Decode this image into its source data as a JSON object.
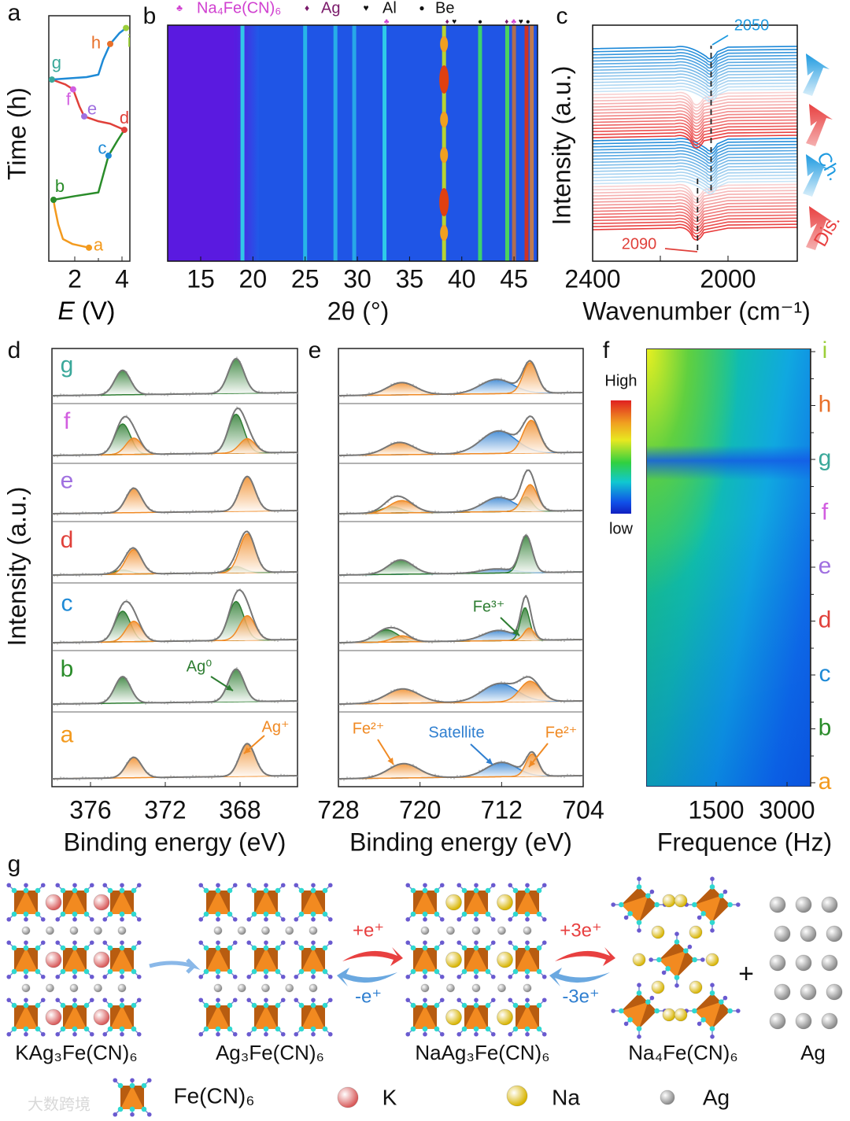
{
  "panel_labels": {
    "a": "a",
    "b": "b",
    "c": "c",
    "d": "d",
    "e": "e",
    "f": "f",
    "g": "g"
  },
  "watermark": "大数跨境",
  "colors": {
    "a": "#f39a1e",
    "b": "#2a8c2a",
    "c": "#1e8ad6",
    "d": "#e0403a",
    "e": "#a070e0",
    "f": "#d25ee0",
    "g": "#3aa89a",
    "h": "#e8702a",
    "i": "#9ccf3a",
    "green_peak": "#2e7d32",
    "orange_peak": "#f08a24",
    "blue_peak": "#2f7fd0"
  },
  "chart_data": [
    {
      "id": "a",
      "type": "line",
      "xlabel_var": "E",
      "xlabel_unit": " (V)",
      "ylabel": "Time (h)",
      "xlim": [
        0.9,
        4.45
      ],
      "xticks": [
        "2",
        "4"
      ],
      "xtick_values": [
        2,
        4
      ],
      "points": [
        {
          "label": "a",
          "E": 2.6,
          "t": 0.055
        },
        {
          "label": "b",
          "E": 1.1,
          "t": 0.25
        },
        {
          "label": "c",
          "E": 3.43,
          "t": 0.43
        },
        {
          "label": "d",
          "E": 4.1,
          "t": 0.535
        },
        {
          "label": "e",
          "E": 2.4,
          "t": 0.59
        },
        {
          "label": "f",
          "E": 1.93,
          "t": 0.7
        },
        {
          "label": "g",
          "E": 1.03,
          "t": 0.74
        },
        {
          "label": "h",
          "E": 3.5,
          "t": 0.885
        },
        {
          "label": "i",
          "E": 4.17,
          "t": 0.95
        }
      ],
      "segments": [
        {
          "color": "#f39a1e",
          "pts": [
            [
              2.6,
              0.055
            ],
            [
              1.9,
              0.07
            ],
            [
              1.5,
              0.09
            ],
            [
              1.3,
              0.15
            ],
            [
              1.15,
              0.22
            ],
            [
              1.1,
              0.25
            ]
          ]
        },
        {
          "color": "#2a8c2a",
          "pts": [
            [
              1.1,
              0.25
            ],
            [
              2.0,
              0.265
            ],
            [
              3.0,
              0.28
            ],
            [
              3.2,
              0.35
            ],
            [
              3.43,
              0.43
            ],
            [
              3.8,
              0.49
            ],
            [
              4.1,
              0.535
            ]
          ]
        },
        {
          "color": "#e0403a",
          "pts": [
            [
              4.1,
              0.535
            ],
            [
              3.5,
              0.56
            ],
            [
              3.0,
              0.57
            ],
            [
              2.4,
              0.59
            ],
            [
              2.2,
              0.63
            ],
            [
              1.93,
              0.7
            ],
            [
              1.6,
              0.72
            ],
            [
              1.03,
              0.74
            ]
          ]
        },
        {
          "color": "#1e8ad6",
          "pts": [
            [
              1.03,
              0.74
            ],
            [
              2.5,
              0.75
            ],
            [
              3.0,
              0.76
            ],
            [
              3.2,
              0.82
            ],
            [
              3.5,
              0.885
            ],
            [
              3.9,
              0.93
            ],
            [
              4.17,
              0.95
            ]
          ]
        }
      ]
    },
    {
      "id": "b",
      "type": "heatmap",
      "xlabel": "2θ (°)",
      "xlim": [
        11.8,
        47.2
      ],
      "xticks": [
        "15",
        "20",
        "25",
        "30",
        "35",
        "40",
        "45"
      ],
      "xtick_values": [
        15,
        20,
        25,
        30,
        35,
        40,
        45
      ],
      "legend": [
        {
          "symbol": "♣",
          "label": "Na₄Fe(CN)₆",
          "color": "#d040d0"
        },
        {
          "symbol": "♦",
          "label": "Ag",
          "color": "#7a1a6a"
        },
        {
          "symbol": "♥",
          "label": "Al",
          "color": "#111111"
        },
        {
          "symbol": "●",
          "label": "Be",
          "color": "#111111"
        }
      ],
      "markers": [
        {
          "symbol": "♣",
          "pos": 32.8,
          "color": "#d040d0"
        },
        {
          "symbol": "♦",
          "pos": 38.6,
          "color": "#7a1a6a"
        },
        {
          "symbol": "♥",
          "pos": 38.95,
          "color": "#111111"
        },
        {
          "symbol": "●",
          "pos": 41.75,
          "color": "#111111"
        },
        {
          "symbol": "♦",
          "pos": 44.3,
          "color": "#7a1a6a"
        },
        {
          "symbol": "♣",
          "pos": 44.6,
          "color": "#d040d0"
        },
        {
          "symbol": "♥",
          "pos": 45.05,
          "color": "#111111"
        },
        {
          "symbol": "●",
          "pos": 46.3,
          "color": "#111111"
        }
      ],
      "peaks": [
        {
          "pos": 19.0,
          "color": "#30d8e8"
        },
        {
          "pos": 25.0,
          "color": "#28c0e8"
        },
        {
          "pos": 27.9,
          "color": "#28b8e8"
        },
        {
          "pos": 29.7,
          "color": "#28b0e8"
        },
        {
          "pos": 32.6,
          "color": "#30d8e8"
        },
        {
          "pos": 38.3,
          "color": "#c8e020"
        },
        {
          "pos": 41.75,
          "color": "#40e060"
        },
        {
          "pos": 44.35,
          "color": "#50e050"
        },
        {
          "pos": 45.0,
          "color": "#c07040"
        },
        {
          "pos": 46.2,
          "color": "#e03010"
        },
        {
          "pos": 46.7,
          "color": "#d08040"
        }
      ]
    },
    {
      "id": "c",
      "type": "line",
      "xlabel": "Wavenumber (cm⁻¹)",
      "ylabel": "Intensity (a.u.)",
      "xlim": [
        2400,
        1795
      ],
      "xticks": [
        "2400",
        "2000"
      ],
      "xtick_values": [
        2400,
        2200,
        2000
      ],
      "annotations": {
        "peak_low": "2090",
        "peak_high": "2050",
        "charge": "Ch.",
        "discharge": "Dis."
      },
      "peak_positions": [
        2090,
        2050
      ],
      "blocks": [
        "discharge",
        "charge",
        "discharge",
        "charge"
      ],
      "spectra_per_block": 15
    },
    {
      "id": "d",
      "type": "line",
      "xlabel": "Binding energy (eV)",
      "ylabel": "Intensity (a.u.)",
      "xlim": [
        378.1,
        364.9
      ],
      "xticks": [
        "376",
        "372",
        "368"
      ],
      "xtick_values": [
        376,
        372,
        368
      ],
      "annotations": {
        "ag0": "Ag⁰",
        "agplus": "Ag⁺"
      },
      "spectra": [
        {
          "label": "g",
          "peaks": [
            {
              "c": 374.3,
              "a": 0.6,
              "k": "g"
            },
            {
              "c": 368.2,
              "a": 0.85,
              "k": "g"
            }
          ]
        },
        {
          "label": "f",
          "peaks": [
            {
              "c": 374.3,
              "a": 0.75,
              "k": "g"
            },
            {
              "c": 373.7,
              "a": 0.4,
              "k": "o"
            },
            {
              "c": 368.2,
              "a": 0.95,
              "k": "g"
            },
            {
              "c": 367.6,
              "a": 0.35,
              "k": "o"
            }
          ]
        },
        {
          "label": "e",
          "peaks": [
            {
              "c": 373.7,
              "a": 0.6,
              "k": "o"
            },
            {
              "c": 367.6,
              "a": 0.85,
              "k": "o"
            }
          ]
        },
        {
          "label": "d",
          "peaks": [
            {
              "c": 374.3,
              "a": 0.1,
              "k": "g"
            },
            {
              "c": 373.7,
              "a": 0.6,
              "k": "o"
            },
            {
              "c": 368.2,
              "a": 0.15,
              "k": "g"
            },
            {
              "c": 367.6,
              "a": 0.95,
              "k": "o"
            }
          ]
        },
        {
          "label": "c",
          "peaks": [
            {
              "c": 374.3,
              "a": 0.75,
              "k": "g"
            },
            {
              "c": 373.7,
              "a": 0.5,
              "k": "o"
            },
            {
              "c": 368.2,
              "a": 0.95,
              "k": "g"
            },
            {
              "c": 367.6,
              "a": 0.6,
              "k": "o"
            }
          ]
        },
        {
          "label": "b",
          "peaks": [
            {
              "c": 374.3,
              "a": 0.65,
              "k": "g"
            },
            {
              "c": 368.2,
              "a": 0.8,
              "k": "g"
            }
          ]
        },
        {
          "label": "a",
          "peaks": [
            {
              "c": 373.7,
              "a": 0.5,
              "k": "o"
            },
            {
              "c": 367.6,
              "a": 0.8,
              "k": "o"
            }
          ]
        }
      ]
    },
    {
      "id": "e",
      "type": "line",
      "xlabel": "Binding energy (eV)",
      "xlim": [
        728,
        704
      ],
      "xticks": [
        "728",
        "720",
        "712",
        "704"
      ],
      "xtick_values": [
        728,
        720,
        712,
        704
      ],
      "annotations": {
        "fe3": "Fe³⁺",
        "fe2_left": "Fe²⁺",
        "satellite": "Satellite",
        "fe2_right": "Fe²⁺"
      },
      "spectra": [
        {
          "label": "g",
          "peaks": [
            {
              "c": 721.8,
              "a": 0.3,
              "k": "o",
              "w": 1.4
            },
            {
              "c": 712.5,
              "a": 0.35,
              "k": "b",
              "w": 1.6
            },
            {
              "c": 709.2,
              "a": 0.75,
              "k": "o",
              "w": 0.7
            }
          ]
        },
        {
          "label": "f",
          "peaks": [
            {
              "c": 722.0,
              "a": 0.3,
              "k": "o",
              "w": 1.4
            },
            {
              "c": 712.3,
              "a": 0.55,
              "k": "b",
              "w": 1.7
            },
            {
              "c": 709.1,
              "a": 0.8,
              "k": "o",
              "w": 0.8
            }
          ]
        },
        {
          "label": "e",
          "peaks": [
            {
              "c": 722.8,
              "a": 0.15,
              "k": "g",
              "w": 1.0
            },
            {
              "c": 721.8,
              "a": 0.3,
              "k": "o",
              "w": 1.2
            },
            {
              "c": 712.3,
              "a": 0.35,
              "k": "b",
              "w": 1.5
            },
            {
              "c": 709.6,
              "a": 0.35,
              "k": "g",
              "w": 0.6
            },
            {
              "c": 709.2,
              "a": 0.65,
              "k": "o",
              "w": 0.7
            }
          ]
        },
        {
          "label": "d",
          "peaks": [
            {
              "c": 721.9,
              "a": 0.35,
              "k": "g",
              "w": 1.2
            },
            {
              "c": 712.5,
              "a": 0.1,
              "k": "b",
              "w": 1.5
            },
            {
              "c": 709.6,
              "a": 0.9,
              "k": "g",
              "w": 0.6
            }
          ]
        },
        {
          "label": "c",
          "peaks": [
            {
              "c": 723.3,
              "a": 0.3,
              "k": "g",
              "w": 1.1
            },
            {
              "c": 721.8,
              "a": 0.15,
              "k": "o",
              "w": 0.9
            },
            {
              "c": 712.3,
              "a": 0.25,
              "k": "b",
              "w": 1.5
            },
            {
              "c": 709.7,
              "a": 0.8,
              "k": "g",
              "w": 0.45
            },
            {
              "c": 709.3,
              "a": 0.3,
              "k": "o",
              "w": 0.5
            }
          ]
        },
        {
          "label": "b",
          "peaks": [
            {
              "c": 721.7,
              "a": 0.35,
              "k": "o",
              "w": 1.6
            },
            {
              "c": 712.2,
              "a": 0.45,
              "k": "b",
              "w": 1.7
            },
            {
              "c": 709.2,
              "a": 0.5,
              "k": "o",
              "w": 1.0
            }
          ]
        },
        {
          "label": "a",
          "peaks": [
            {
              "c": 721.6,
              "a": 0.35,
              "k": "o",
              "w": 1.5
            },
            {
              "c": 712.0,
              "a": 0.35,
              "k": "b",
              "w": 1.5
            },
            {
              "c": 709.0,
              "a": 0.55,
              "k": "o",
              "w": 0.6
            }
          ]
        }
      ]
    },
    {
      "id": "f",
      "type": "heatmap",
      "xlabel": "Frequence (Hz)",
      "xticks": [
        "1500",
        "3000"
      ],
      "xtick_values": [
        1500,
        3000
      ],
      "colorbar": {
        "high": "High",
        "low": "low"
      },
      "states": [
        "a",
        "b",
        "c",
        "d",
        "e",
        "f",
        "g",
        "h",
        "i"
      ]
    }
  ],
  "schematic": {
    "compounds": [
      "KAg₃Fe(CN)₆",
      "Ag₃Fe(CN)₆",
      "NaAg₃Fe(CN)₆",
      "Na₄Fe(CN)₆",
      "Ag"
    ],
    "arrows": {
      "plus_e": "+e⁺",
      "minus_e": "-e⁺",
      "plus_3e": "+3e⁺",
      "minus_3e": "-3e⁺",
      "plus_sign": "+"
    },
    "legend": [
      {
        "key": "octa",
        "label": "Fe(CN)₆"
      },
      {
        "key": "K",
        "label": "K"
      },
      {
        "key": "Na",
        "label": "Na"
      },
      {
        "key": "Ag",
        "label": "Ag"
      }
    ]
  }
}
